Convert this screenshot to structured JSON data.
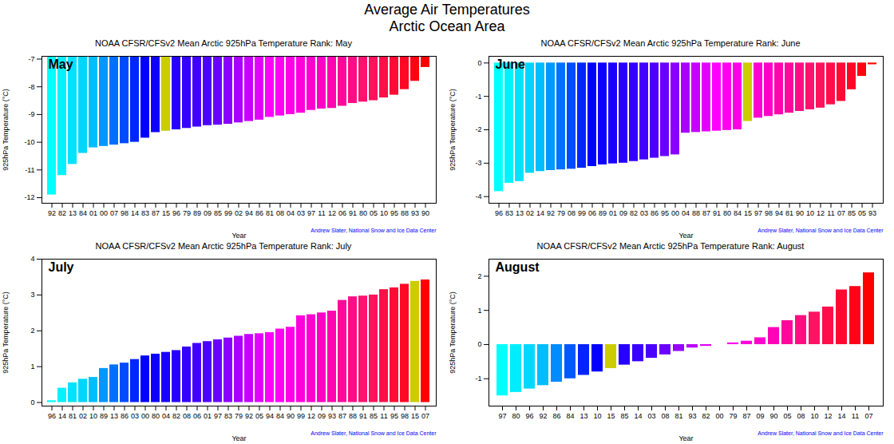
{
  "title": "Average Air Temperatures\nArctic Ocean Area",
  "chart_data": [
    {
      "type": "bar",
      "subtitle": "NOAA CFSR/CFSv2 Mean Arctic 925hPa Temperature Rank: May",
      "xlabel": "Year",
      "ylabel": "925hPa Temperature (°C)",
      "annotations": [
        "May",
        "Andrew Slater, National Snow and Ice Data Center"
      ],
      "categories": [
        "92",
        "82",
        "13",
        "84",
        "01",
        "00",
        "07",
        "98",
        "14",
        "83",
        "87",
        "15",
        "96",
        "79",
        "89",
        "09",
        "85",
        "99",
        "02",
        "94",
        "86",
        "81",
        "08",
        "04",
        "03",
        "97",
        "11",
        "12",
        "06",
        "91",
        "80",
        "05",
        "10",
        "95",
        "88",
        "93",
        "90"
      ],
      "values": [
        -11.9,
        -11.2,
        -10.8,
        -10.4,
        -10.2,
        -10.15,
        -10.1,
        -10.05,
        -10.0,
        -9.85,
        -9.65,
        -9.6,
        -9.55,
        -9.5,
        -9.45,
        -9.4,
        -9.38,
        -9.35,
        -9.3,
        -9.25,
        -9.2,
        -9.1,
        -9.05,
        -9.0,
        -8.95,
        -8.85,
        -8.8,
        -8.78,
        -8.7,
        -8.6,
        -8.55,
        -8.5,
        -8.4,
        -8.3,
        -8.1,
        -7.8,
        -7.3
      ],
      "colors": [
        "#00ffff",
        "#00f1ff",
        "#00e3ff",
        "#00d5ff",
        "#00bdff",
        "#0097ff",
        "#0071ff",
        "#004bff",
        "#0025ff",
        "#0000ff",
        "#0d00ff",
        "#cccc00",
        "#2700ff",
        "#3400ff",
        "#4100ff",
        "#4e00ff",
        "#6a00ff",
        "#8900ff",
        "#a700ff",
        "#c500ff",
        "#e400ff",
        "#ff00fd",
        "#ff00f2",
        "#ff00e7",
        "#ff00dc",
        "#ff00d2",
        "#ff00c6",
        "#ff04b0",
        "#ff089b",
        "#ff0d86",
        "#ff1170",
        "#ff125c",
        "#ff0e4a",
        "#ff0b37",
        "#ff0725",
        "#ff0312",
        "#ff0000"
      ],
      "ylim": [
        -12.2,
        -6.9
      ],
      "yticks": [
        -12,
        -11,
        -10,
        -9,
        -8,
        -7
      ],
      "grid": false
    },
    {
      "type": "bar",
      "subtitle": "NOAA CFSR/CFSv2 Mean Arctic 925hPa Temperature Rank: June",
      "xlabel": "Year",
      "ylabel": "925hPa Temperature (°C)",
      "annotations": [
        "June",
        "Andrew Slater, National Snow and Ice Data Center"
      ],
      "categories": [
        "96",
        "83",
        "13",
        "02",
        "14",
        "92",
        "79",
        "08",
        "99",
        "06",
        "89",
        "01",
        "09",
        "82",
        "03",
        "86",
        "95",
        "00",
        "04",
        "88",
        "87",
        "91",
        "80",
        "84",
        "15",
        "97",
        "98",
        "94",
        "81",
        "90",
        "10",
        "12",
        "11",
        "07",
        "85",
        "05",
        "93"
      ],
      "values": [
        -3.85,
        -3.6,
        -3.55,
        -3.3,
        -3.25,
        -3.22,
        -3.2,
        -3.18,
        -3.15,
        -3.1,
        -3.05,
        -3.02,
        -3.0,
        -2.95,
        -2.9,
        -2.85,
        -2.8,
        -2.75,
        -2.1,
        -2.08,
        -2.06,
        -2.04,
        -2.02,
        -2.0,
        -1.75,
        -1.65,
        -1.6,
        -1.55,
        -1.5,
        -1.45,
        -1.4,
        -1.35,
        -1.25,
        -1.15,
        -0.8,
        -0.4,
        -0.05
      ],
      "colors": [
        "#00ffff",
        "#00f1ff",
        "#00e3ff",
        "#00d5ff",
        "#00bdff",
        "#0097ff",
        "#0071ff",
        "#004bff",
        "#0025ff",
        "#0000ff",
        "#0d00ff",
        "#1a00ff",
        "#2700ff",
        "#3400ff",
        "#4100ff",
        "#4e00ff",
        "#6a00ff",
        "#8900ff",
        "#a700ff",
        "#c500ff",
        "#e400ff",
        "#ff00fd",
        "#ff00f2",
        "#ff00e7",
        "#cccc00",
        "#ff00d2",
        "#ff00c6",
        "#ff04b0",
        "#ff089b",
        "#ff0d86",
        "#ff1170",
        "#ff125c",
        "#ff0e4a",
        "#ff0b37",
        "#ff0725",
        "#ff0312",
        "#ff0000"
      ],
      "ylim": [
        -4.2,
        0.2
      ],
      "yticks": [
        -4,
        -3,
        -2,
        -1,
        0
      ],
      "grid": false
    },
    {
      "type": "bar",
      "subtitle": "NOAA CFSR/CFSv2 Mean Arctic 925hPa Temperature Rank: July",
      "xlabel": "Year",
      "ylabel": "925hPa Temperature (°C)",
      "annotations": [
        "July",
        "Andrew Slater, National Snow and Ice Data Center"
      ],
      "categories": [
        "96",
        "14",
        "81",
        "02",
        "10",
        "89",
        "13",
        "86",
        "03",
        "00",
        "80",
        "04",
        "82",
        "08",
        "06",
        "01",
        "97",
        "83",
        "79",
        "92",
        "05",
        "94",
        "84",
        "90",
        "99",
        "12",
        "09",
        "93",
        "87",
        "88",
        "91",
        "85",
        "11",
        "95",
        "98",
        "15",
        "07"
      ],
      "values": [
        0.05,
        0.4,
        0.55,
        0.65,
        0.7,
        0.95,
        1.05,
        1.1,
        1.2,
        1.3,
        1.35,
        1.4,
        1.45,
        1.55,
        1.65,
        1.7,
        1.75,
        1.8,
        1.85,
        1.9,
        1.92,
        1.95,
        2.05,
        2.1,
        2.42,
        2.45,
        2.5,
        2.55,
        2.85,
        2.95,
        2.97,
        3.0,
        3.15,
        3.2,
        3.3,
        3.38,
        3.42
      ],
      "colors": [
        "#00ffff",
        "#00f1ff",
        "#00e3ff",
        "#00d5ff",
        "#00bdff",
        "#0097ff",
        "#0071ff",
        "#004bff",
        "#0025ff",
        "#0000ff",
        "#0d00ff",
        "#1a00ff",
        "#2700ff",
        "#3400ff",
        "#4100ff",
        "#4e00ff",
        "#6a00ff",
        "#8900ff",
        "#a700ff",
        "#c500ff",
        "#e400ff",
        "#ff00fd",
        "#ff00f2",
        "#ff00e7",
        "#ff00dc",
        "#ff00d2",
        "#ff00c6",
        "#ff04b0",
        "#ff089b",
        "#ff0d86",
        "#ff1170",
        "#ff125c",
        "#ff0e4a",
        "#ff0b37",
        "#ff0725",
        "#cccc00",
        "#ff0000"
      ],
      "ylim": [
        -0.1,
        4.0
      ],
      "yticks": [
        0,
        1,
        2,
        3,
        4
      ],
      "grid": false
    },
    {
      "type": "bar",
      "subtitle": "NOAA CFSR/CFSv2 Mean Arctic 925hPa Temperature Rank: August",
      "xlabel": "Year",
      "ylabel": "925hPa Temperature (°C)",
      "annotations": [
        "August",
        "Andrew Slater, National Snow and Ice Data Center"
      ],
      "categories": [
        "97",
        "80",
        "96",
        "92",
        "86",
        "84",
        "13",
        "10",
        "15",
        "85",
        "14",
        "03",
        "08",
        "81",
        "93",
        "82",
        "00",
        "79",
        "87",
        "09",
        "90",
        "05",
        "08",
        "10",
        "12",
        "14",
        "11",
        "07"
      ],
      "values": [
        -1.5,
        -1.4,
        -1.3,
        -1.2,
        -1.1,
        -1.0,
        -0.9,
        -0.8,
        -0.7,
        -0.6,
        -0.5,
        -0.4,
        -0.3,
        -0.2,
        -0.1,
        -0.05,
        0.0,
        0.05,
        0.1,
        0.2,
        0.5,
        0.7,
        0.85,
        0.95,
        1.1,
        1.6,
        1.7,
        2.1
      ],
      "colors": [
        "#00ffff",
        "#00ecff",
        "#00d9ff",
        "#00bdff",
        "#008bff",
        "#0058ff",
        "#0025ff",
        "#0400ff",
        "#cccc00",
        "#2700ff",
        "#3800ff",
        "#4a00ff",
        "#6a00ff",
        "#9300ff",
        "#bb00ff",
        "#e400ff",
        "#ff00fa",
        "#ff00eb",
        "#ff00dc",
        "#ff00ce",
        "#ff03b8",
        "#ff089b",
        "#ff0e7f",
        "#ff1362",
        "#ff0e4a",
        "#ff0931",
        "#ff0418",
        "#ff0000"
      ],
      "ylim": [
        -1.8,
        2.5
      ],
      "yticks": [
        -1,
        0,
        1,
        2
      ],
      "grid": false
    }
  ]
}
